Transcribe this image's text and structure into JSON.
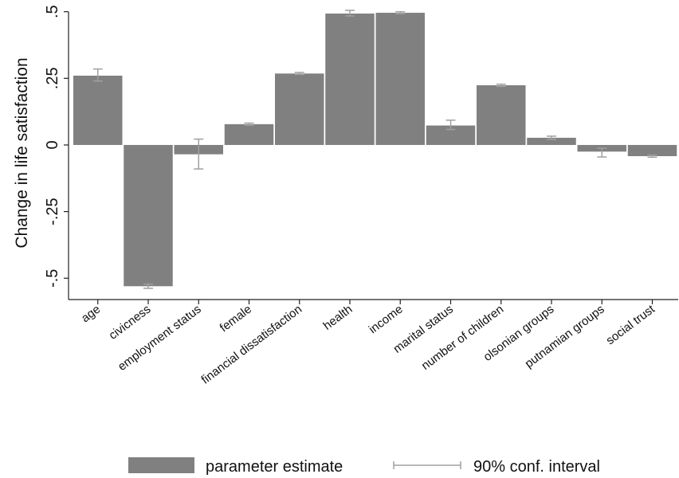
{
  "chart_data": {
    "type": "bar",
    "categories": [
      "age",
      "civicness",
      "employment status",
      "female",
      "financial dissatisfaction",
      "health",
      "income",
      "marital status",
      "number of children",
      "olsonian groups",
      "putnamian groups",
      "social trust"
    ],
    "series": [
      {
        "name": "parameter estimate",
        "values": [
          0.26,
          -0.53,
          -0.035,
          0.078,
          0.268,
          0.493,
          0.496,
          0.073,
          0.224,
          0.027,
          -0.025,
          -0.042
        ]
      }
    ],
    "ci_series": {
      "name": "90% conf. interval",
      "low": [
        0.24,
        -0.538,
        -0.09,
        0.074,
        0.265,
        0.484,
        0.492,
        0.058,
        0.22,
        0.021,
        -0.045,
        -0.046
      ],
      "high": [
        0.285,
        -0.522,
        0.022,
        0.082,
        0.272,
        0.505,
        0.5,
        0.093,
        0.228,
        0.033,
        -0.012,
        -0.038
      ]
    },
    "ylabel": "Change in life satisfaction",
    "xlabel": "",
    "ylim": [
      -0.58,
      0.52
    ],
    "yticks": [
      0.5,
      0.25,
      0,
      -0.25,
      -0.5
    ],
    "ytick_labels": [
      ".5",
      ".25",
      "0",
      "-.25",
      "-.5"
    ],
    "grid": false,
    "legend_position": "bottom",
    "colors": {
      "bar": "#808080",
      "ci": "#a0a0a0",
      "axis": "#222222"
    }
  }
}
